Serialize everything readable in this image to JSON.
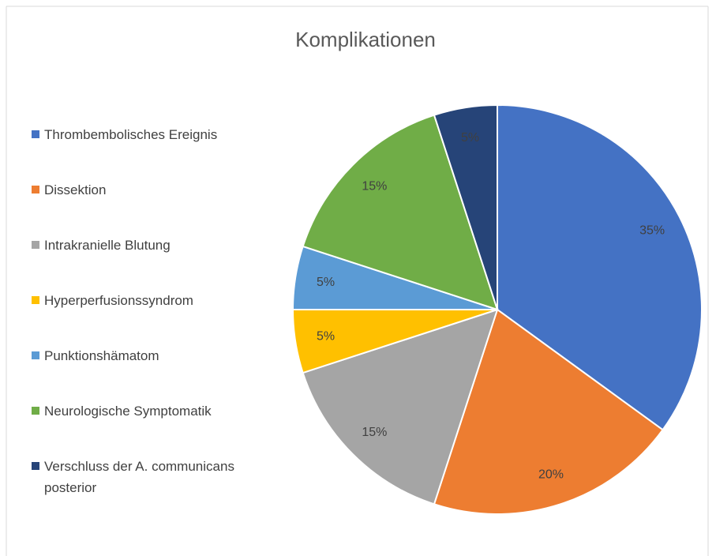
{
  "chart_data": {
    "type": "pie",
    "title": "Komplikationen",
    "categories": [
      "Thrombembolisches Ereignis",
      "Dissektion",
      "Intrakranielle Blutung",
      "Hyperperfusionssyndrom",
      "Punktionshämatom",
      "Neurologische Symptomatik",
      "Verschluss der A. communicans posterior"
    ],
    "values": [
      35,
      20,
      15,
      5,
      5,
      15,
      5
    ],
    "value_labels": [
      "35%",
      "20%",
      "15%",
      "5%",
      "5%",
      "15%",
      "5%"
    ],
    "colors": [
      "#4472c4",
      "#ed7d31",
      "#a5a5a5",
      "#ffc000",
      "#5b9bd5",
      "#70ad47",
      "#264478"
    ],
    "legend": "left"
  }
}
